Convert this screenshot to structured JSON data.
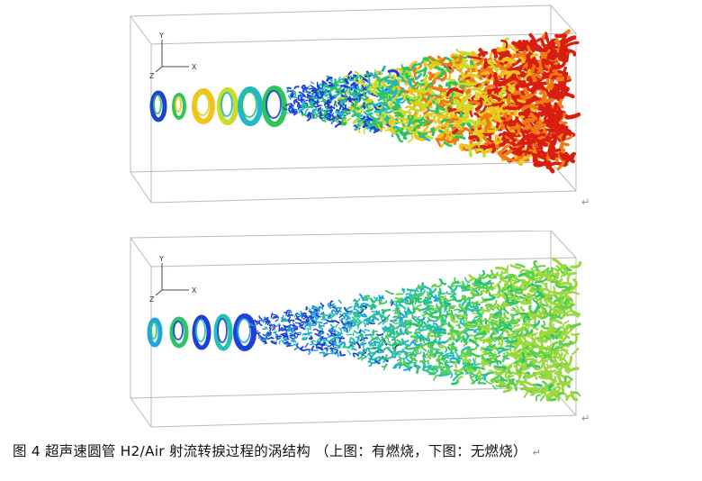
{
  "figure": {
    "caption": "图 4  超声速圆管 H2/Air 射流转捩过程的涡结构   （上图：有燃烧，下图：无燃烧）",
    "paragraph_mark": "↵"
  },
  "panels": [
    {
      "id": "top",
      "condition": "有燃烧",
      "axes": {
        "y": "Y",
        "x": "X",
        "z": "Z"
      },
      "colormap": [
        "#1f3fd6",
        "#1fb8c8",
        "#2ec45c",
        "#c8dc28",
        "#f5c21a",
        "#f07a14",
        "#d81e10"
      ]
    },
    {
      "id": "bottom",
      "condition": "无燃烧",
      "axes": {
        "y": "Y",
        "x": "X",
        "z": "Z"
      },
      "colormap": [
        "#1f3fd6",
        "#1fa6e0",
        "#22c3b0",
        "#2cc46a",
        "#5fd04a",
        "#9bd83c"
      ]
    }
  ]
}
